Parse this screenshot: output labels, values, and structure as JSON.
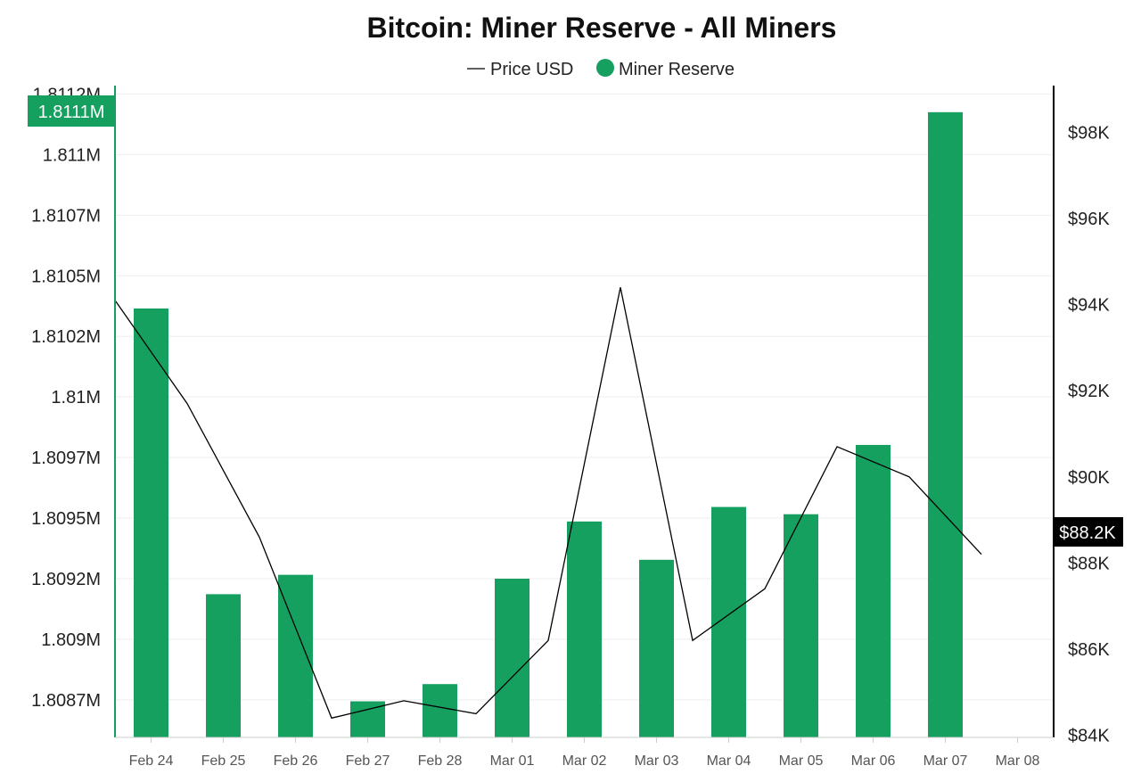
{
  "chart_data": {
    "type": "bar",
    "title": "Bitcoin: Miner Reserve - All Miners",
    "categories": [
      "Feb 24",
      "Feb 25",
      "Feb 26",
      "Feb 27",
      "Feb 28",
      "Mar 01",
      "Mar 02",
      "Mar 03",
      "Mar 04",
      "Mar 05",
      "Mar 06",
      "Mar 07",
      "Mar 08"
    ],
    "series": [
      {
        "name": "Miner Reserve",
        "type": "bar",
        "axis": "left",
        "color": "#16a05f",
        "values": [
          1810315,
          1809136,
          1809216,
          1808694,
          1808765,
          1809200,
          1809436,
          1809278,
          1809496,
          1809466,
          1809752,
          1811125,
          null
        ]
      },
      {
        "name": "Price USD",
        "type": "line",
        "axis": "right",
        "color": "#000000",
        "values": [
          94100,
          91700,
          88600,
          84400,
          84800,
          84500,
          86200,
          94400,
          86200,
          87400,
          90700,
          90000,
          88200
        ]
      }
    ],
    "y_left": {
      "ylim": [
        1808545,
        1811220
      ],
      "ticks": [
        1808700,
        1808950,
        1809200,
        1809450,
        1809700,
        1809950,
        1810200,
        1810450,
        1810700,
        1810950,
        1811200
      ],
      "tick_labels": [
        "1.8087M",
        "1.809M",
        "1.8092M",
        "1.8095M",
        "1.8097M",
        "1.81M",
        "1.8102M",
        "1.8105M",
        "1.8107M",
        "1.811M",
        "1.8112M"
      ],
      "current_value": 1811125,
      "current_label": "1.8111M",
      "color": "#16a05f"
    },
    "y_right": {
      "ylim": [
        83950,
        99000
      ],
      "ticks": [
        84000,
        86000,
        88000,
        90000,
        92000,
        94000,
        96000,
        98000
      ],
      "tick_labels": [
        "$84K",
        "$86K",
        "$88K",
        "$90K",
        "$92K",
        "$94K",
        "$96K",
        "$98K"
      ],
      "current_value": 88200,
      "current_label": "$88.2K",
      "color": "#000000"
    },
    "legend": {
      "placement": "top-center",
      "items": [
        {
          "label": "Price USD",
          "marker": "line"
        },
        {
          "label": "Miner Reserve",
          "marker": "dot"
        }
      ]
    },
    "grid": true
  }
}
